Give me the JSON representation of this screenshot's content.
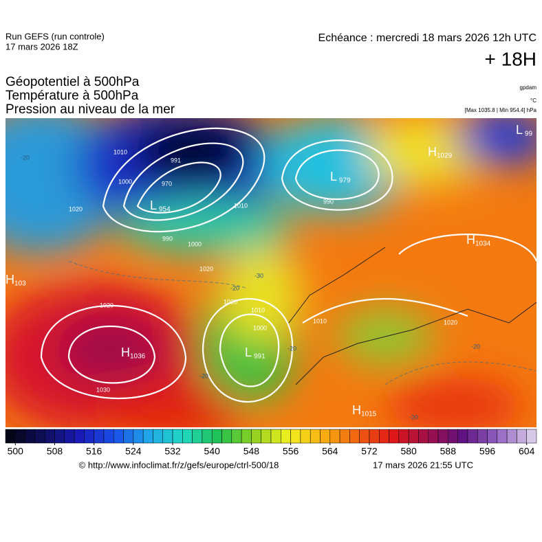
{
  "header": {
    "run": "Run GEFS (run controle)",
    "run_time": "17 mars 2026 18Z",
    "valid": "Echéance : mercredi 18 mars 2026 12h UTC",
    "lead": "+ 18H",
    "fields": [
      "Géopotentiel à 500hPa",
      "Température à 500hPa",
      "Pression au niveau de la mer"
    ],
    "units": [
      "gpdam",
      "°C",
      "[Max 1035.8 | Min 954.4] hPa"
    ]
  },
  "map": {
    "centers": [
      {
        "type": "L",
        "value": "954"
      },
      {
        "type": "L",
        "value": "979"
      },
      {
        "type": "H",
        "value": "1029"
      },
      {
        "type": "H",
        "value": "1034"
      },
      {
        "type": "H",
        "value": "1036"
      },
      {
        "type": "L",
        "value": "991"
      },
      {
        "type": "H",
        "value": "1015"
      },
      {
        "type": "L",
        "value": "99"
      },
      {
        "type": "H",
        "value": "103"
      }
    ],
    "isobar_labels": [
      "1010",
      "991",
      "970",
      "1000",
      "1020",
      "990",
      "1000",
      "1010",
      "1020",
      "990",
      "1030",
      "1020",
      "1020",
      "1000",
      "1010",
      "1010",
      "1020"
    ],
    "temperature_labels": [
      "-20",
      "-30",
      "-20",
      "-20",
      "-20",
      "-20",
      "-20"
    ]
  },
  "colorbar": {
    "ticks": [
      500,
      508,
      516,
      524,
      532,
      540,
      548,
      556,
      564,
      572,
      580,
      588,
      596,
      604
    ],
    "lim": [
      498,
      606
    ],
    "step": 2
  },
  "footer": {
    "source": "© http://www.infoclimat.fr/z/gefs/europe/ctrl-500/18",
    "made": "17 mars 2026 21:55 UTC"
  }
}
